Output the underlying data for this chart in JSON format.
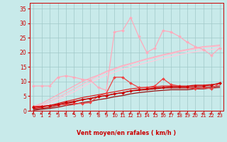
{
  "bg_color": "#c8eaea",
  "grid_color": "#a0c8c8",
  "xlabel": "Vent moyen/en rafales ( km/h )",
  "xlabel_color": "#cc0000",
  "tick_color": "#cc0000",
  "axis_color": "#cc0000",
  "x_ticks": [
    0,
    1,
    2,
    3,
    4,
    5,
    6,
    7,
    8,
    9,
    10,
    11,
    12,
    13,
    14,
    15,
    16,
    17,
    18,
    19,
    20,
    21,
    22,
    23
  ],
  "y_ticks": [
    0,
    5,
    10,
    15,
    20,
    25,
    30,
    35
  ],
  "xlim": [
    -0.5,
    23.5
  ],
  "ylim": [
    0,
    37
  ],
  "series": [
    {
      "color": "#ffaabb",
      "linewidth": 0.9,
      "marker": "D",
      "markersize": 2.0,
      "data": [
        8.5,
        8.5,
        8.5,
        11.5,
        12.0,
        11.5,
        10.8,
        10.5,
        8.0,
        7.0,
        27.0,
        27.5,
        32.0,
        25.5,
        20.0,
        21.5,
        27.5,
        27.0,
        25.5,
        23.5,
        22.0,
        21.0,
        19.0,
        21.5
      ]
    },
    {
      "color": "#ffaabb",
      "linewidth": 0.9,
      "marker": null,
      "markersize": 0,
      "data": [
        1.5,
        2.5,
        4.0,
        5.5,
        7.0,
        8.5,
        10.0,
        11.2,
        12.2,
        13.5,
        14.5,
        15.5,
        16.2,
        17.0,
        17.8,
        18.5,
        19.2,
        19.8,
        20.5,
        21.0,
        21.5,
        22.0,
        22.2,
        22.5
      ]
    },
    {
      "color": "#ffbbcc",
      "linewidth": 0.9,
      "marker": null,
      "markersize": 0,
      "data": [
        1.2,
        2.0,
        3.2,
        4.5,
        6.0,
        7.5,
        9.0,
        10.5,
        12.0,
        13.2,
        14.2,
        15.2,
        16.0,
        16.8,
        17.6,
        18.2,
        19.0,
        19.5,
        20.2,
        20.8,
        21.2,
        21.8,
        22.0,
        22.2
      ]
    },
    {
      "color": "#ffccdd",
      "linewidth": 0.9,
      "marker": null,
      "markersize": 0,
      "data": [
        0.8,
        1.5,
        2.5,
        3.8,
        5.2,
        6.5,
        8.0,
        9.5,
        11.0,
        12.2,
        13.2,
        14.2,
        15.0,
        15.8,
        16.5,
        17.2,
        18.0,
        18.5,
        19.2,
        19.8,
        20.2,
        20.8,
        21.0,
        21.5
      ]
    },
    {
      "color": "#ee4444",
      "linewidth": 0.9,
      "marker": "D",
      "markersize": 2.0,
      "data": [
        1.5,
        1.5,
        1.8,
        2.0,
        2.2,
        2.5,
        2.5,
        2.8,
        5.0,
        6.0,
        11.5,
        11.5,
        9.5,
        8.0,
        8.0,
        8.5,
        11.0,
        9.0,
        8.5,
        8.0,
        7.5,
        8.0,
        7.5,
        9.5
      ]
    },
    {
      "color": "#cc0000",
      "linewidth": 0.9,
      "marker": "D",
      "markersize": 2.0,
      "data": [
        1.2,
        1.5,
        1.8,
        2.2,
        2.8,
        3.2,
        3.8,
        4.2,
        4.8,
        5.2,
        5.8,
        6.2,
        6.8,
        7.2,
        7.5,
        7.8,
        8.0,
        8.2,
        8.2,
        8.2,
        8.5,
        8.5,
        8.8,
        9.5
      ]
    },
    {
      "color": "#dd2222",
      "linewidth": 0.9,
      "marker": null,
      "markersize": 0,
      "data": [
        0.8,
        1.2,
        1.8,
        2.5,
        3.2,
        3.8,
        4.5,
        5.0,
        5.5,
        6.0,
        6.5,
        7.0,
        7.5,
        7.8,
        8.0,
        8.2,
        8.5,
        8.5,
        8.5,
        8.5,
        8.8,
        8.8,
        9.0,
        9.2
      ]
    },
    {
      "color": "#bb1111",
      "linewidth": 0.9,
      "marker": null,
      "markersize": 0,
      "data": [
        0.5,
        0.8,
        1.2,
        1.8,
        2.5,
        3.0,
        3.8,
        4.2,
        4.8,
        5.2,
        5.8,
        6.2,
        6.8,
        7.0,
        7.2,
        7.5,
        7.8,
        7.8,
        7.8,
        7.8,
        8.0,
        8.0,
        8.2,
        8.5
      ]
    },
    {
      "color": "#991111",
      "linewidth": 0.9,
      "marker": null,
      "markersize": 0,
      "data": [
        0.2,
        0.5,
        0.8,
        1.2,
        1.8,
        2.2,
        2.8,
        3.2,
        3.8,
        4.2,
        4.8,
        5.2,
        5.8,
        6.2,
        6.5,
        6.8,
        7.0,
        7.2,
        7.2,
        7.2,
        7.5,
        7.5,
        7.8,
        8.0
      ]
    }
  ]
}
